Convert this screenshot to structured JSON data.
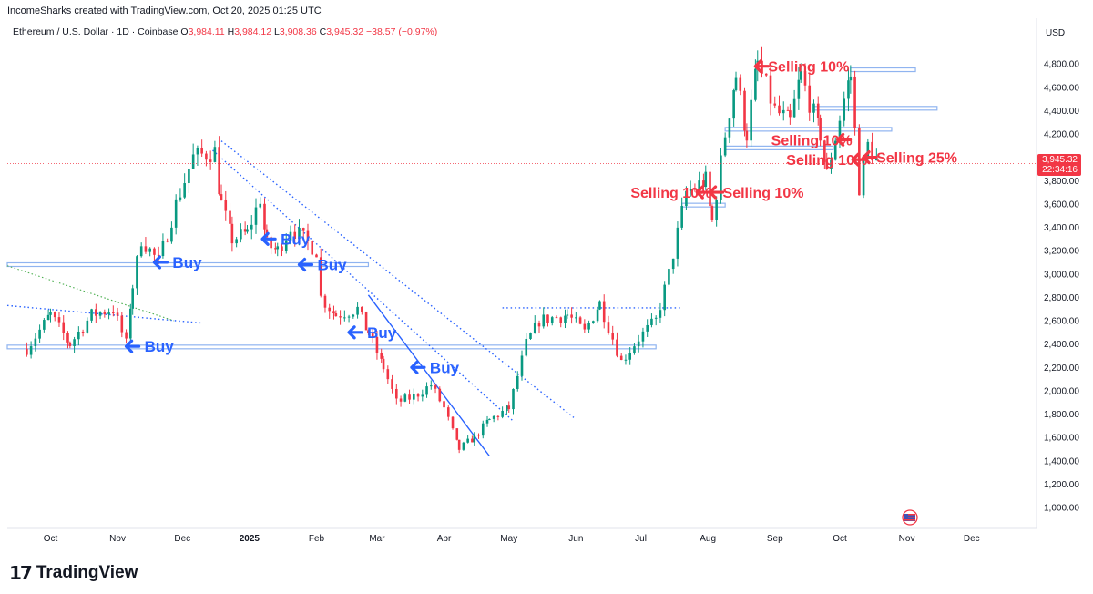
{
  "header": {
    "attribution": "IncomeSharks created with TradingView.com, Oct 20, 2025 01:25 UTC"
  },
  "symbol": {
    "name": "Ethereum / U.S. Dollar · 1D · Coinbase",
    "open_label": "O",
    "open": "3,984.11",
    "high_label": "H",
    "high": "3,984.12",
    "low_label": "L",
    "low": "3,908.36",
    "close_label": "C",
    "close": "3,945.32",
    "change": "−38.57 (−0.97%)"
  },
  "price_scale": {
    "currency": "USD",
    "ticks": [
      "1,000.00",
      "1,200.00",
      "1,400.00",
      "1,600.00",
      "1,800.00",
      "2,000.00",
      "2,200.00",
      "2,400.00",
      "2,600.00",
      "2,800.00",
      "3,000.00",
      "3,200.00",
      "3,400.00",
      "3,600.00",
      "3,800.00",
      "4,000.00",
      "4,200.00",
      "4,400.00",
      "4,600.00",
      "4,800.00"
    ],
    "last_price": "3,945.32",
    "countdown": "22:34:16"
  },
  "time_scale": {
    "ticks": [
      "Oct",
      "Nov",
      "Dec",
      "2025",
      "Feb",
      "Mar",
      "Apr",
      "May",
      "Jun",
      "Jul",
      "Aug",
      "Sep",
      "Oct",
      "Nov",
      "Dec"
    ]
  },
  "annotations": {
    "buy_label": "Buy",
    "sell_labels": [
      "Selling 10%",
      "Selling 10%",
      "Selling 10%",
      "Selling 10%",
      "Selling 10%",
      "Selling 25%"
    ]
  },
  "branding": {
    "logo_mark": "17",
    "logo_text": "TradingView"
  },
  "colors": {
    "up": "#089981",
    "down": "#f23645",
    "buy_annotation": "#2962ff",
    "sell_annotation": "#f23645",
    "level_line": "#90b4f0"
  },
  "chart_data": {
    "type": "candlestick",
    "title": "Ethereum / U.S. Dollar · 1D · Coinbase",
    "ylabel": "USD",
    "y_scale": "linear",
    "ylim": [
      850,
      5000
    ],
    "xlim": [
      "2024-09-11",
      "2025-12-31"
    ],
    "grid": false,
    "price_path": [
      [
        "2024-09-20",
        2360
      ],
      [
        "2024-10-01",
        2650
      ],
      [
        "2024-10-10",
        2400
      ],
      [
        "2024-10-20",
        2650
      ],
      [
        "2024-10-30",
        2700
      ],
      [
        "2024-11-05",
        2400
      ],
      [
        "2024-11-08",
        2900
      ],
      [
        "2024-11-12",
        3300
      ],
      [
        "2024-11-20",
        3100
      ],
      [
        "2024-11-28",
        3600
      ],
      [
        "2024-12-06",
        4000
      ],
      [
        "2024-12-16",
        4050
      ],
      [
        "2024-12-19",
        3600
      ],
      [
        "2024-12-24",
        3300
      ],
      [
        "2024-12-31",
        3350
      ],
      [
        "2025-01-06",
        3650
      ],
      [
        "2025-01-09",
        3250
      ],
      [
        "2025-01-14",
        3200
      ],
      [
        "2025-01-20",
        3400
      ],
      [
        "2025-01-26",
        3300
      ],
      [
        "2025-02-01",
        3200
      ],
      [
        "2025-02-03",
        2800
      ],
      [
        "2025-02-10",
        2650
      ],
      [
        "2025-02-20",
        2700
      ],
      [
        "2025-02-25",
        2500
      ],
      [
        "2025-03-04",
        2200
      ],
      [
        "2025-03-10",
        1900
      ],
      [
        "2025-03-18",
        1950
      ],
      [
        "2025-03-26",
        2050
      ],
      [
        "2025-04-01",
        1850
      ],
      [
        "2025-04-08",
        1500
      ],
      [
        "2025-04-15",
        1600
      ],
      [
        "2025-04-22",
        1750
      ],
      [
        "2025-05-01",
        1850
      ],
      [
        "2025-05-09",
        2400
      ],
      [
        "2025-05-15",
        2600
      ],
      [
        "2025-05-28",
        2650
      ],
      [
        "2025-06-05",
        2500
      ],
      [
        "2025-06-12",
        2750
      ],
      [
        "2025-06-22",
        2250
      ],
      [
        "2025-06-30",
        2450
      ],
      [
        "2025-07-08",
        2600
      ],
      [
        "2025-07-14",
        3000
      ],
      [
        "2025-07-22",
        3700
      ],
      [
        "2025-07-31",
        3800
      ],
      [
        "2025-08-03",
        3450
      ],
      [
        "2025-08-09",
        4200
      ],
      [
        "2025-08-14",
        4700
      ],
      [
        "2025-08-19",
        4200
      ],
      [
        "2025-08-24",
        4800
      ],
      [
        "2025-09-01",
        4400
      ],
      [
        "2025-09-08",
        4300
      ],
      [
        "2025-09-13",
        4700
      ],
      [
        "2025-09-22",
        4200
      ],
      [
        "2025-09-25",
        3850
      ],
      [
        "2025-10-03",
        4500
      ],
      [
        "2025-10-06",
        4700
      ],
      [
        "2025-10-10",
        3750
      ],
      [
        "2025-10-14",
        4100
      ],
      [
        "2025-10-19",
        3945
      ]
    ],
    "last_close": 3945.32,
    "horizontal_levels": [
      {
        "price": 3080,
        "from": "2024-09-11",
        "to": "2025-02-25"
      },
      {
        "price": 2375,
        "from": "2024-09-11",
        "to": "2025-07-08"
      },
      {
        "price": 3590,
        "from": "2025-07-20",
        "to": "2025-08-09"
      },
      {
        "price": 4080,
        "from": "2025-08-09",
        "to": "2025-09-28"
      },
      {
        "price": 4240,
        "from": "2025-08-09",
        "to": "2025-10-25"
      },
      {
        "price": 4420,
        "from": "2025-09-19",
        "to": "2025-11-15"
      },
      {
        "price": 4750,
        "from": "2025-10-06",
        "to": "2025-11-05"
      }
    ],
    "dotted_levels": [
      {
        "price": 2710,
        "from": "2025-04-28",
        "to": "2025-07-20"
      }
    ],
    "trendlines": [
      {
        "style": "dotted",
        "from": [
          "2024-12-19",
          4140
        ],
        "to": [
          "2025-05-31",
          1770
        ]
      },
      {
        "style": "dotted",
        "from": [
          "2024-12-15",
          4060
        ],
        "to": [
          "2025-05-03",
          1740
        ]
      },
      {
        "style": "solid",
        "from": [
          "2025-02-25",
          2820
        ],
        "to": [
          "2025-04-22",
          1440
        ]
      },
      {
        "style": "dotted",
        "from": [
          "2024-09-11",
          2730
        ],
        "to": [
          "2024-12-10",
          2580
        ]
      },
      {
        "style": "dotted-green",
        "from": [
          "2024-09-11",
          3070
        ],
        "to": [
          "2024-11-27",
          2600
        ]
      }
    ],
    "buy_markers": [
      "2024-11-18",
      "2025-01-07",
      "2025-01-24",
      "2024-11-05",
      "2025-02-16",
      "2025-03-17"
    ],
    "sell_markers": [
      "2025-08-23",
      "2025-07-27",
      "2025-08-02",
      "2025-09-30",
      "2025-10-07",
      "2025-10-12"
    ]
  }
}
